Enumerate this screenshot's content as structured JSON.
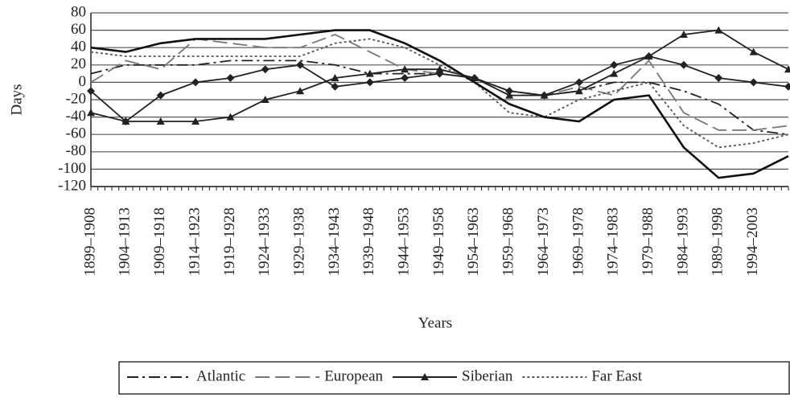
{
  "chart_data": {
    "type": "line",
    "x_label": "Years",
    "y_label": "Days",
    "categories": [
      "1899–1908",
      "1904–1913",
      "1909–1918",
      "1914–1923",
      "1919–1928",
      "1924–1933",
      "1929–1938",
      "1934–1943",
      "1939–1948",
      "1944–1953",
      "1949–1958",
      "1954–1963",
      "1959–1968",
      "1964–1973",
      "1969–1978",
      "1974–1983",
      "1979–1988",
      "1984–1993",
      "1989–1998",
      "1994–2003",
      null
    ],
    "series": [
      {
        "name": "Atlantic",
        "color": "#222",
        "dash": "dashdot",
        "values": [
          10,
          20,
          20,
          20,
          25,
          25,
          25,
          20,
          10,
          10,
          10,
          5,
          -10,
          -15,
          -10,
          0,
          0,
          -10,
          -25,
          -55,
          -60
        ]
      },
      {
        "name": "European",
        "color": "#777",
        "dash": "longdash",
        "values": [
          0,
          25,
          15,
          50,
          45,
          40,
          40,
          55,
          35,
          15,
          10,
          5,
          -15,
          -15,
          -5,
          -15,
          25,
          -35,
          -55,
          -55,
          -50
        ]
      },
      {
        "name": "Siberian",
        "color": "#222",
        "dash": "solid",
        "marker": "triangle",
        "values": [
          -35,
          -45,
          -45,
          -45,
          -40,
          -20,
          -10,
          5,
          10,
          15,
          15,
          5,
          -15,
          -15,
          -10,
          10,
          30,
          55,
          60,
          35,
          15
        ]
      },
      {
        "name": "Far East",
        "color": "#555",
        "dash": "dotted",
        "values": [
          35,
          30,
          30,
          30,
          30,
          30,
          30,
          45,
          50,
          40,
          20,
          0,
          -35,
          -40,
          -20,
          -10,
          0,
          -50,
          -75,
          -70,
          -60
        ]
      },
      {
        "color": "#111",
        "dash": "thick",
        "values": [
          40,
          35,
          45,
          50,
          50,
          50,
          55,
          60,
          60,
          45,
          25,
          0,
          -25,
          -40,
          -45,
          -20,
          -15,
          -75,
          -110,
          -105,
          -85
        ]
      },
      {
        "color": "#222",
        "dash": "solid",
        "marker": "diamond",
        "values": [
          -10,
          -45,
          -15,
          0,
          5,
          15,
          20,
          -5,
          0,
          5,
          10,
          5,
          -10,
          -15,
          0,
          20,
          30,
          20,
          5,
          0,
          -5
        ]
      }
    ],
    "ylim": [
      -120,
      80
    ],
    "yticks": [
      80,
      60,
      40,
      20,
      0,
      -20,
      -40,
      -60,
      -80,
      -100,
      -120
    ],
    "grid": true
  }
}
